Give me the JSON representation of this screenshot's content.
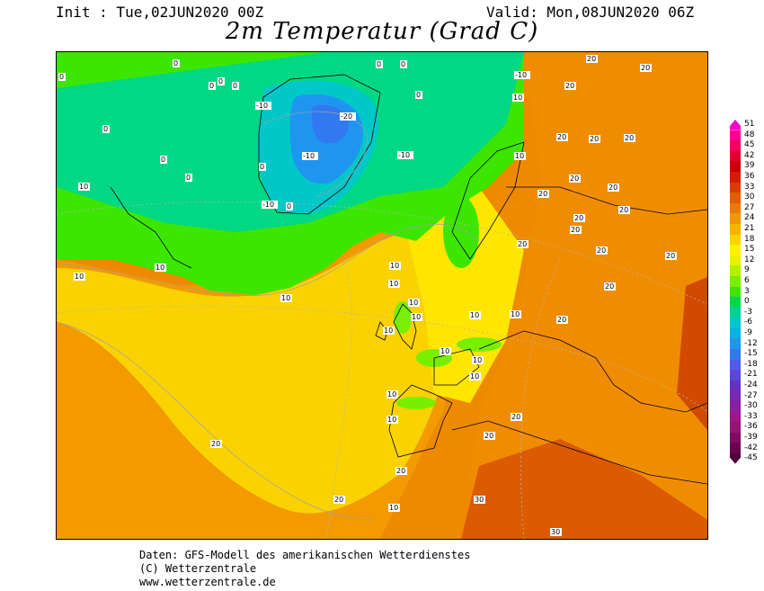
{
  "header": {
    "init": "Init : Tue,02JUN2020 00Z",
    "valid": "Valid: Mon,08JUN2020 06Z",
    "title": "2m Temperatur (Grad C)"
  },
  "legend": {
    "values": [
      "51",
      "48",
      "45",
      "42",
      "39",
      "36",
      "33",
      "30",
      "27",
      "24",
      "21",
      "18",
      "15",
      "12",
      "9",
      "6",
      "3",
      "0",
      "-3",
      "-6",
      "-9",
      "-12",
      "-15",
      "-18",
      "-21",
      "-24",
      "-27",
      "-30",
      "-33",
      "-36",
      "-39",
      "-42",
      "-45"
    ],
    "colors": [
      "#ff00c8",
      "#ff0096",
      "#f00064",
      "#e00032",
      "#c8000a",
      "#d21e00",
      "#dc3c00",
      "#e65a00",
      "#ee7800",
      "#f29600",
      "#f6b400",
      "#fad200",
      "#fff000",
      "#e8f000",
      "#b4f000",
      "#78ee00",
      "#3ce600",
      "#00d84a",
      "#00d296",
      "#00c8c8",
      "#00b4e6",
      "#1e96f0",
      "#3278f0",
      "#505af0",
      "#5a46dc",
      "#6432c8",
      "#7828b4",
      "#8c1ea0",
      "#a0148c",
      "#961478",
      "#820a64",
      "#6e0050",
      "#50003c"
    ]
  },
  "map": {
    "contour_labels": [
      "0",
      "0",
      "0",
      "0",
      "0",
      "0",
      "0",
      "0",
      "0",
      "0",
      "0",
      "0",
      "0",
      "-10",
      "-10",
      "-20",
      "-10",
      "-10",
      "-10",
      "10",
      "10",
      "10",
      "10",
      "10",
      "10",
      "10",
      "10",
      "10",
      "10",
      "10",
      "10",
      "10",
      "10",
      "10",
      "10",
      "10",
      "10",
      "10",
      "20",
      "20",
      "20",
      "20",
      "20",
      "20",
      "20",
      "20",
      "20",
      "20",
      "20",
      "20",
      "20",
      "20",
      "20",
      "20",
      "20",
      "20",
      "20",
      "20",
      "20",
      "20",
      "30",
      "30"
    ]
  },
  "footer": {
    "line1": "Daten: GFS-Modell des amerikanischen Wetterdienstes",
    "line2": "(C) Wetterzentrale",
    "line3": "www.wetterzentrale.de"
  }
}
